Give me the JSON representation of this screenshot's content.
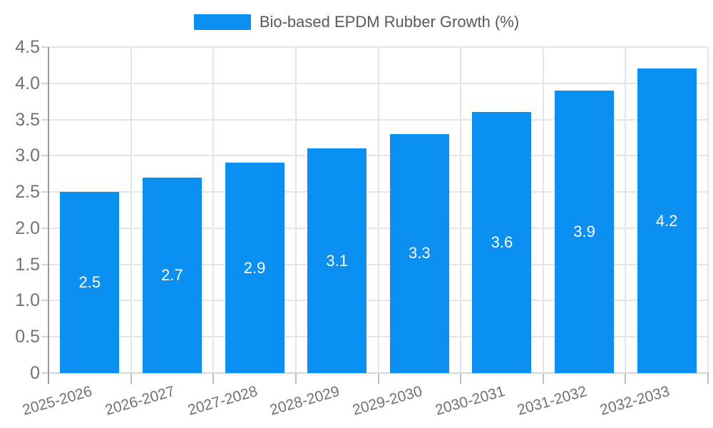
{
  "chart_data": {
    "type": "bar",
    "title": "Bio-based EPDM Rubber Growth (%)",
    "categories": [
      "2025-2026",
      "2026-2027",
      "2027-2028",
      "2028-2029",
      "2029-2030",
      "2030-2031",
      "2031-2032",
      "2032-2033"
    ],
    "values": [
      2.5,
      2.7,
      2.9,
      3.1,
      3.3,
      3.6,
      3.9,
      4.2
    ],
    "value_labels": [
      "2.5",
      "2.7",
      "2.9",
      "3.1",
      "3.3",
      "3.6",
      "3.9",
      "4.2"
    ],
    "xlabel": "",
    "ylabel": "",
    "ylim": [
      0,
      4.5
    ],
    "y_tick_step": 0.5,
    "y_tick_labels": [
      "0",
      "0.5",
      "1.0",
      "1.5",
      "2.0",
      "2.5",
      "3.0",
      "3.5",
      "4.0",
      "4.5"
    ],
    "grid": "both",
    "legend_position": "top-center",
    "bar_color": "#0b90f2",
    "value_label_color": "#ffffff"
  }
}
